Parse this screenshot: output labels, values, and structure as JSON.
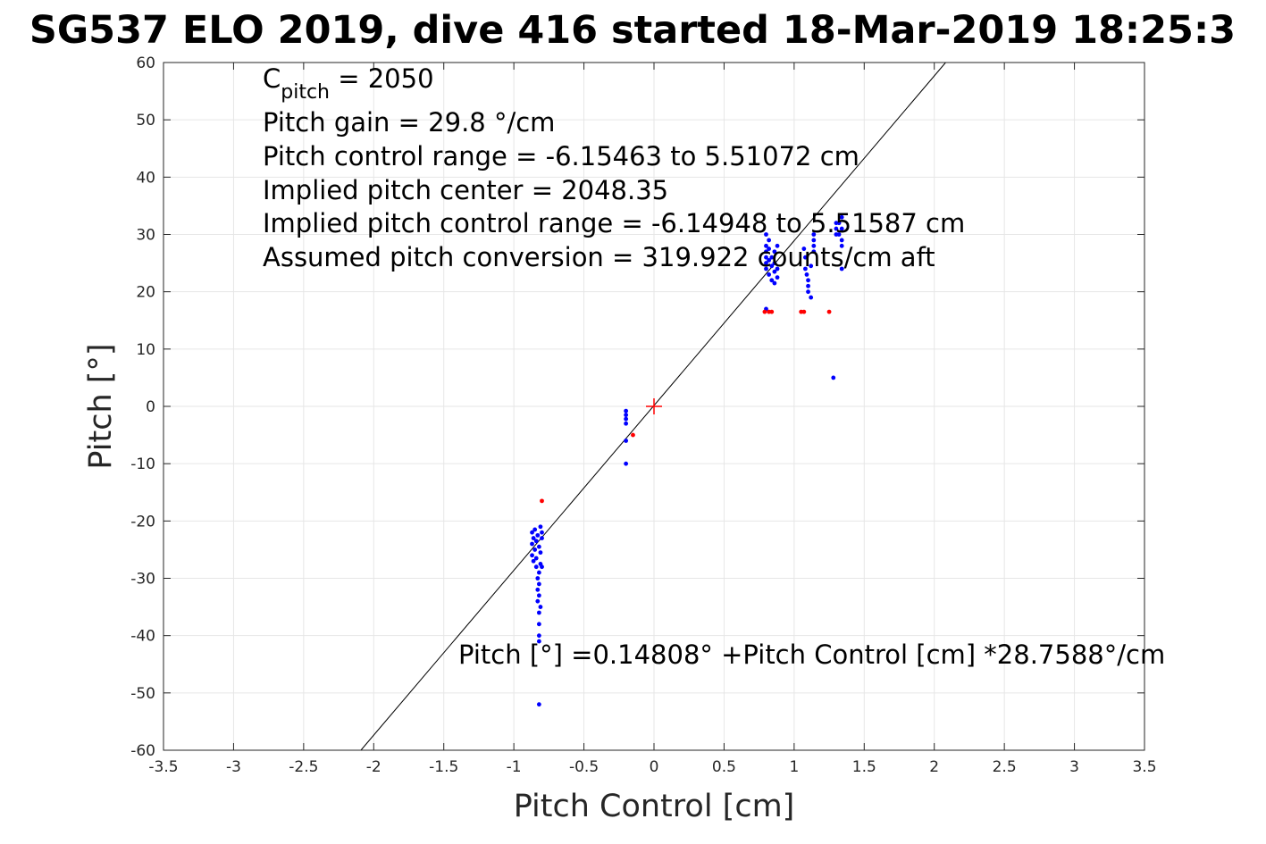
{
  "chart_data": {
    "type": "scatter",
    "title": "SG537 ELO 2019, dive 416 started 18-Mar-2019 18:25:3",
    "xlabel": "Pitch Control [cm]",
    "ylabel": "Pitch [°]",
    "xlim": [
      -3.5,
      3.5
    ],
    "ylim": [
      -60,
      60
    ],
    "xticks": [
      -3.5,
      -3,
      -2.5,
      -2,
      -1.5,
      -1,
      -0.5,
      0,
      0.5,
      1,
      1.5,
      2,
      2.5,
      3,
      3.5
    ],
    "xtick_labels": [
      "-3.5",
      "-3",
      "-2.5",
      "-2",
      "-1.5",
      "-1",
      "-0.5",
      "0",
      "0.5",
      "1",
      "1.5",
      "2",
      "2.5",
      "3",
      "3.5"
    ],
    "yticks": [
      -60,
      -50,
      -40,
      -30,
      -20,
      -10,
      0,
      10,
      20,
      30,
      40,
      50,
      60
    ],
    "ytick_labels": [
      "-60",
      "-50",
      "-40",
      "-30",
      "-20",
      "-10",
      "0",
      "10",
      "20",
      "30",
      "40",
      "50",
      "60"
    ],
    "grid": true,
    "colors": {
      "series_blue": "#0000ff",
      "series_red": "#ff0000",
      "fit_line": "#000000",
      "grid": "#e6e6e6",
      "axes": "#262626"
    },
    "annotations": {
      "c_pitch_prefix": "C",
      "c_pitch_sub": "pitch",
      "c_pitch_value": " = 2050",
      "pitch_gain": "Pitch gain = 29.8 °/cm",
      "pitch_control_range": "Pitch control range = -6.15463 to 5.51072 cm",
      "implied_center": "Implied pitch center = 2048.35",
      "implied_range": "Implied pitch control range = -6.14948 to 5.51587 cm",
      "assumed_conversion": "Assumed pitch conversion = 319.922 counts/cm aft",
      "fit_equation": "Pitch [°] =0.14808° +Pitch Control [cm] *28.7588°/cm"
    },
    "fit_line": {
      "intercept": 0.14808,
      "slope": 28.7588
    },
    "center_marker": {
      "x": 0,
      "y": 0
    },
    "series": [
      {
        "color": "blue",
        "points": [
          [
            -0.87,
            -22
          ],
          [
            -0.87,
            -24
          ],
          [
            -0.87,
            -26
          ],
          [
            -0.86,
            -27
          ],
          [
            -0.86,
            -23
          ],
          [
            -0.85,
            -25
          ],
          [
            -0.85,
            -21.5
          ],
          [
            -0.84,
            -23.5
          ],
          [
            -0.84,
            -26.5
          ],
          [
            -0.84,
            -28
          ],
          [
            -0.83,
            -30
          ],
          [
            -0.83,
            -32
          ],
          [
            -0.83,
            -34
          ],
          [
            -0.83,
            -22.5
          ],
          [
            -0.82,
            -24.5
          ],
          [
            -0.82,
            -29
          ],
          [
            -0.82,
            -31
          ],
          [
            -0.82,
            -33
          ],
          [
            -0.82,
            -36
          ],
          [
            -0.82,
            -38
          ],
          [
            -0.82,
            -40
          ],
          [
            -0.82,
            -41
          ],
          [
            -0.81,
            -21
          ],
          [
            -0.81,
            -25.5
          ],
          [
            -0.81,
            -27.5
          ],
          [
            -0.81,
            -35
          ],
          [
            -0.8,
            -22
          ],
          [
            -0.8,
            -23
          ],
          [
            -0.8,
            -28
          ],
          [
            -0.82,
            -52
          ],
          [
            -0.2,
            -0.8
          ],
          [
            -0.2,
            -1.5
          ],
          [
            -0.2,
            -2.2
          ],
          [
            -0.2,
            -3
          ],
          [
            -0.2,
            -6
          ],
          [
            -0.2,
            -10
          ],
          [
            0.8,
            30
          ],
          [
            0.8,
            28
          ],
          [
            0.8,
            27
          ],
          [
            0.8,
            26
          ],
          [
            0.8,
            25
          ],
          [
            0.8,
            24
          ],
          [
            0.8,
            17
          ],
          [
            0.82,
            29
          ],
          [
            0.82,
            27.5
          ],
          [
            0.82,
            25.5
          ],
          [
            0.82,
            23
          ],
          [
            0.84,
            26
          ],
          [
            0.84,
            24.5
          ],
          [
            0.84,
            22
          ],
          [
            0.86,
            25
          ],
          [
            0.86,
            23.5
          ],
          [
            0.86,
            21.5
          ],
          [
            0.86,
            27
          ],
          [
            0.88,
            28
          ],
          [
            0.88,
            24
          ],
          [
            0.88,
            22.5
          ],
          [
            1.07,
            27.5
          ],
          [
            1.08,
            26
          ],
          [
            1.08,
            24
          ],
          [
            1.09,
            23
          ],
          [
            1.1,
            22
          ],
          [
            1.1,
            21
          ],
          [
            1.1,
            20
          ],
          [
            1.12,
            19
          ],
          [
            1.12,
            24.5
          ],
          [
            1.14,
            30
          ],
          [
            1.14,
            29
          ],
          [
            1.14,
            28
          ],
          [
            1.14,
            27
          ],
          [
            1.3,
            32
          ],
          [
            1.3,
            31
          ],
          [
            1.3,
            30
          ],
          [
            1.32,
            32
          ],
          [
            1.32,
            30
          ],
          [
            1.34,
            33
          ],
          [
            1.34,
            31
          ],
          [
            1.34,
            29
          ],
          [
            1.34,
            28
          ],
          [
            1.34,
            24
          ],
          [
            1.28,
            5
          ]
        ]
      },
      {
        "color": "red",
        "points": [
          [
            -0.8,
            -16.5
          ],
          [
            -0.15,
            -5
          ],
          [
            0.79,
            16.5
          ],
          [
            0.82,
            16.5
          ],
          [
            0.84,
            16.5
          ],
          [
            1.05,
            16.5
          ],
          [
            1.07,
            16.5
          ],
          [
            1.25,
            16.5
          ]
        ]
      }
    ]
  }
}
